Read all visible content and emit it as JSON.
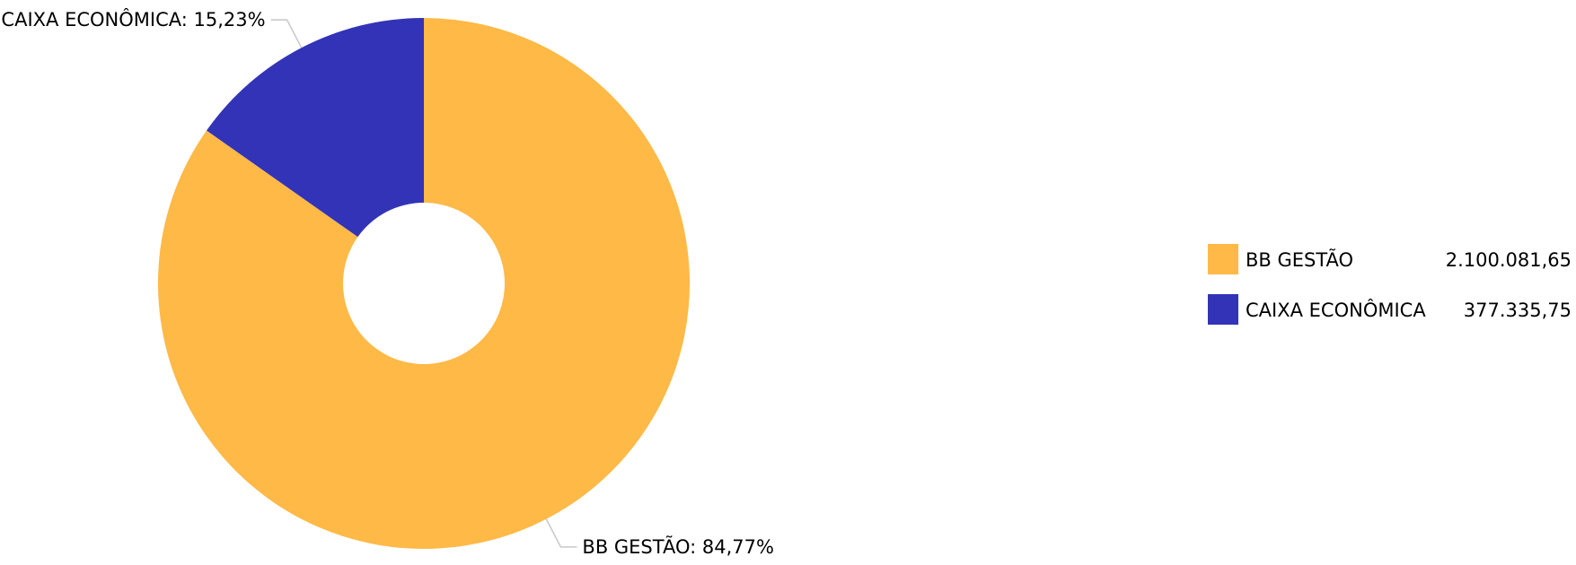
{
  "chart_data": {
    "type": "pie",
    "variant": "donut",
    "title": "",
    "series": [
      {
        "name": "",
        "points": [
          {
            "label": "BB GESTÃO",
            "value": 2100081.65,
            "value_text": "2.100.081,65",
            "percent_text": "84,77%",
            "color": "#FFB946"
          },
          {
            "label": "CAIXA ECONÔMICA",
            "value": 377335.75,
            "value_text": "377.335,75",
            "percent_text": "15,23%",
            "color": "#3333B8"
          }
        ]
      }
    ],
    "legend_position": "right"
  }
}
